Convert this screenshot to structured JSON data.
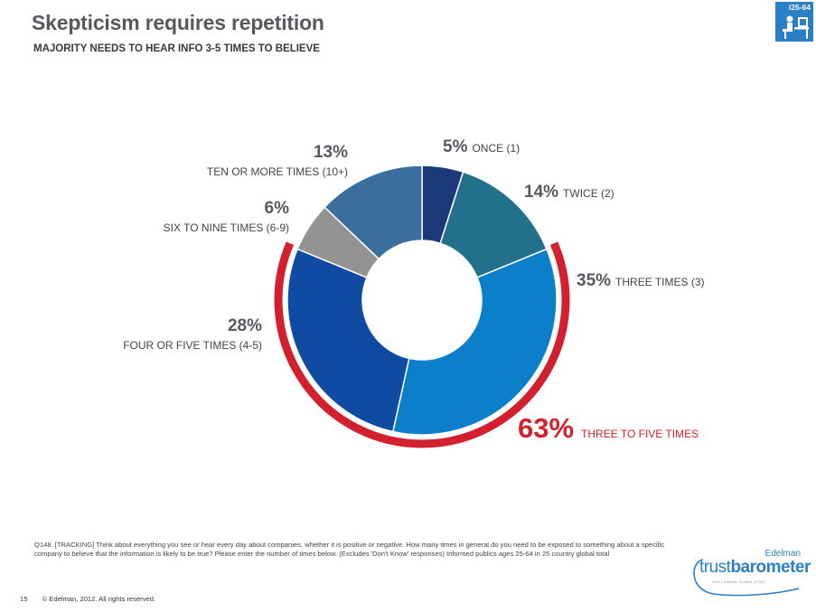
{
  "header": {
    "title": "Skepticism requires repetition",
    "subtitle": "MAJORITY NEEDS TO HEAR INFO 3-5 TIMES TO BELIEVE",
    "badge": "i25-64"
  },
  "chart_data": {
    "type": "pie",
    "variant": "donut",
    "slices": [
      {
        "pct": "5%",
        "label": "ONCE (1)",
        "value": 5,
        "color": "#1c3a7a"
      },
      {
        "pct": "14%",
        "label": "TWICE (2)",
        "value": 14,
        "color": "#23708c"
      },
      {
        "pct": "35%",
        "label": "THREE TIMES (3)",
        "value": 35,
        "color": "#0c7fcb"
      },
      {
        "pct": "28%",
        "label": "FOUR OR FIVE TIMES (4-5)",
        "value": 28,
        "color": "#0f4ba2"
      },
      {
        "pct": "6%",
        "label": "SIX TO NINE TIMES (6-9)",
        "value": 6,
        "color": "#939393"
      },
      {
        "pct": "13%",
        "label": "TEN OR MORE TIMES (10+)",
        "value": 13,
        "color": "#3a6e9d"
      }
    ],
    "highlight": {
      "pct": "63%",
      "label": "THREE TO FIVE TIMES",
      "value": 63,
      "color": "#d3202f"
    }
  },
  "footnote": "Q148. [TRACKING] Think about everything you see or hear every day about companies, whether it is positive or negative. How many times in general do you need to be exposed to something about a specific company to believe that the information is likely to be true? Please enter the number of times below. (Excludes 'Don't Know' responses) Informed publics ages 25-64 in 25 country global total",
  "footer": {
    "page": "15",
    "copyright": "© Edelman, 2012. All rights reserved."
  },
  "brand": {
    "company": "Edelman",
    "name_light": "trust",
    "name_bold": "barometer",
    "tagline": "2012 | ANNUAL GLOBAL STUDY"
  }
}
